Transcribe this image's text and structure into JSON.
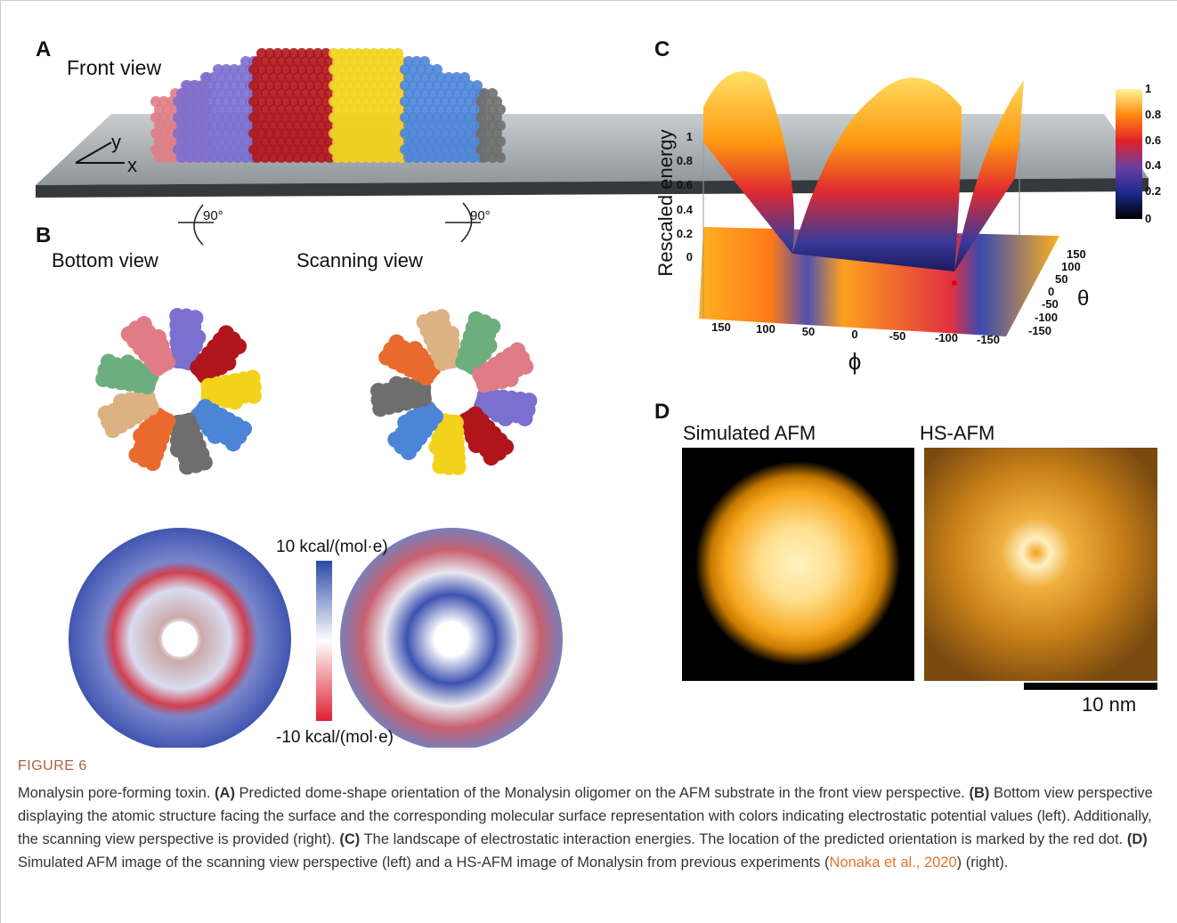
{
  "panel_a": {
    "label": "A",
    "title": "Front view",
    "axis_y": "y",
    "axis_x": "x"
  },
  "rotations": [
    "90°",
    "90°"
  ],
  "panel_b": {
    "label": "B",
    "left_title": "Bottom view",
    "right_title": "Scanning view",
    "scale_max": "10 kcal/(mol·e)",
    "scale_min": "-10 kcal/(mol·e)"
  },
  "panel_c": {
    "label": "C",
    "z_label": "Rescaled energy",
    "z_ticks": [
      "1",
      "0.8",
      "0.6",
      "0.4",
      "0.2",
      "0"
    ],
    "colorbar_ticks": [
      "1",
      "0.8",
      "0.6",
      "0.4",
      "0.2",
      "0"
    ],
    "phi_ticks": [
      "150",
      "100",
      "50",
      "0",
      "-50",
      "-100",
      "-150"
    ],
    "phi_label": "ϕ",
    "theta_ticks": [
      "150",
      "100",
      "50",
      "0",
      "-50",
      "-100",
      "-150"
    ],
    "theta_label": "θ"
  },
  "panel_d": {
    "label": "D",
    "left_title": "Simulated AFM",
    "right_title": "HS-AFM",
    "scale_bar": "10 nm"
  },
  "caption": {
    "figure": "FIGURE 6",
    "parts": [
      "Monalysin pore-forming toxin.",
      "(A)",
      "Predicted dome-shape orientation of the Monalysin oligomer on the AFM substrate in the front view perspective.",
      "(B)",
      "Bottom view perspective displaying the atomic structure facing the surface and the corresponding molecular surface representation with colors indicating electrostatic potential values (left). Additionally, the scanning view perspective is provided (right).",
      "(C)",
      "The landscape of electrostatic interaction energies. The location of the predicted orientation is marked by the red dot.",
      "(D)",
      "Simulated AFM image of the scanning view perspective (left) and a HS-AFM image of Monalysin from previous experiments (",
      "Nonaka et al., 2020",
      ") (right)."
    ]
  }
}
